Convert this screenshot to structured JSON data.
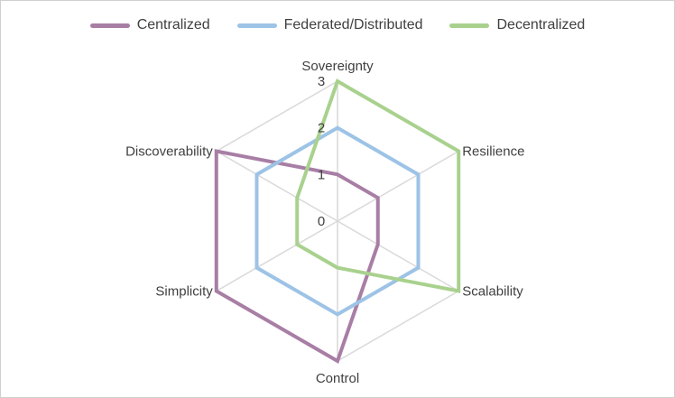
{
  "chart_data": {
    "type": "radar",
    "title": "",
    "categories": [
      "Sovereignty",
      "Resilience",
      "Scalability",
      "Control",
      "Simplicity",
      "Discoverability"
    ],
    "rlim": [
      0,
      3
    ],
    "ticks": [
      "0",
      "1",
      "2",
      "3"
    ],
    "grid": true,
    "legend_position": "top",
    "series": [
      {
        "name": "Centralized",
        "color": "#a87ea5",
        "values": [
          1,
          1,
          1,
          3,
          3,
          3
        ]
      },
      {
        "name": "Federated/Distributed",
        "color": "#9dc3e6",
        "values": [
          2,
          2,
          2,
          2,
          2,
          2
        ]
      },
      {
        "name": "Decentralized",
        "color": "#a9d18e",
        "values": [
          3,
          3,
          3,
          1,
          1,
          1
        ]
      }
    ]
  }
}
